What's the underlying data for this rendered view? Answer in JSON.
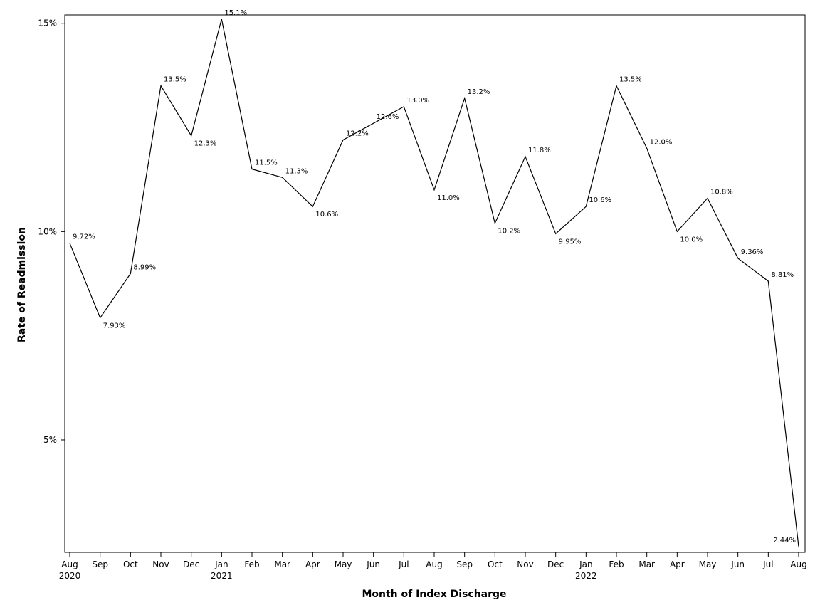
{
  "chart_data": {
    "type": "line",
    "xlabel": "Month of Index Discharge",
    "ylabel": "Rate of Readmission",
    "ylim": [
      2.3,
      15.2
    ],
    "yticks": [
      5,
      10,
      15
    ],
    "ytick_labels": [
      "5%",
      "10%",
      "15%"
    ],
    "grid": false,
    "x": [
      "Aug 2020",
      "Sep 2020",
      "Oct 2020",
      "Nov 2020",
      "Dec 2020",
      "Jan 2021",
      "Feb 2021",
      "Mar 2021",
      "Apr 2021",
      "May 2021",
      "Jun 2021",
      "Jul 2021",
      "Aug 2021",
      "Sep 2021",
      "Oct 2021",
      "Nov 2021",
      "Dec 2021",
      "Jan 2022",
      "Feb 2022",
      "Mar 2022",
      "Apr 2022",
      "May 2022",
      "Jun 2022",
      "Jul 2022",
      "Aug 2022"
    ],
    "tick_month_labels": [
      "Aug",
      "Sep",
      "Oct",
      "Nov",
      "Dec",
      "Jan",
      "Feb",
      "Mar",
      "Apr",
      "May",
      "Jun",
      "Jul",
      "Aug",
      "Sep",
      "Oct",
      "Nov",
      "Dec",
      "Jan",
      "Feb",
      "Mar",
      "Apr",
      "May",
      "Jun",
      "Jul",
      "Aug"
    ],
    "tick_year_labels": [
      "2020",
      "",
      "",
      "",
      "",
      "2021",
      "",
      "",
      "",
      "",
      "",
      "",
      "",
      "",
      "",
      "",
      "",
      "2022",
      "",
      "",
      "",
      "",
      "",
      "",
      ""
    ],
    "series": [
      {
        "values": [
          9.72,
          7.93,
          8.99,
          13.5,
          12.3,
          15.1,
          11.5,
          11.3,
          10.6,
          12.2,
          12.6,
          13.0,
          11.0,
          13.2,
          10.2,
          11.8,
          9.95,
          10.6,
          13.5,
          12.0,
          10.0,
          10.8,
          9.36,
          8.81,
          2.44
        ],
        "data_labels": [
          "9.72%",
          "7.93%",
          "8.99%",
          "13.5%",
          "12.3%",
          "15.1%",
          "11.5%",
          "11.3%",
          "10.6%",
          "12.2%",
          "12.6%",
          "13.0%",
          "11.0%",
          "13.2%",
          "10.2%",
          "11.8%",
          "9.95%",
          "10.6%",
          "13.5%",
          "12.0%",
          "10.0%",
          "10.8%",
          "9.36%",
          "8.81%",
          "2.44%"
        ]
      }
    ]
  }
}
